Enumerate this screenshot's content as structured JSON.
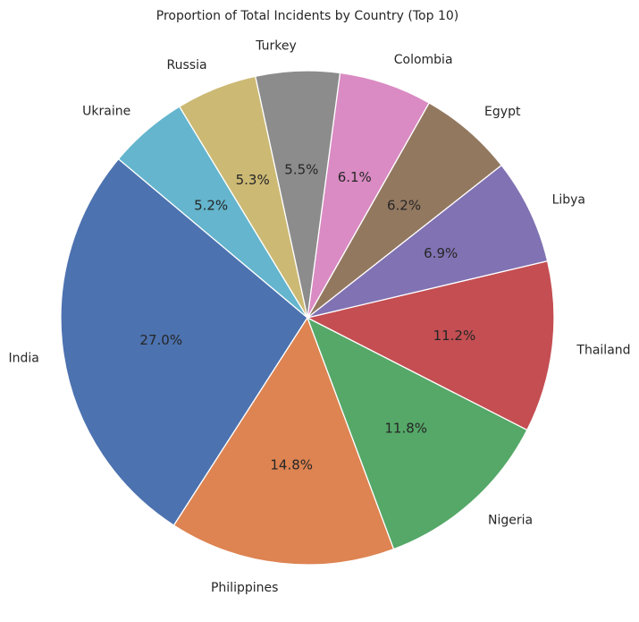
{
  "chart_data": {
    "type": "pie",
    "title": "Proportion of Total Incidents by Country (Top 10)",
    "categories": [
      "India",
      "Philippines",
      "Nigeria",
      "Thailand",
      "Libya",
      "Egypt",
      "Colombia",
      "Turkey",
      "Russia",
      "Ukraine"
    ],
    "values": [
      27.0,
      14.8,
      11.8,
      11.2,
      6.9,
      6.2,
      6.1,
      5.5,
      5.3,
      5.2
    ],
    "labels": [
      "27.0%",
      "14.8%",
      "11.8%",
      "11.2%",
      "6.9%",
      "6.2%",
      "6.1%",
      "5.5%",
      "5.3%",
      "5.2%"
    ],
    "colors": [
      "#4c72b0",
      "#dd8452",
      "#55a868",
      "#c44e52",
      "#8172b3",
      "#937860",
      "#da8bc3",
      "#8c8c8c",
      "#ccb974",
      "#64b5cd"
    ],
    "start_angle": 140,
    "direction": "counterclockwise",
    "edge_color": "#ffffff"
  }
}
